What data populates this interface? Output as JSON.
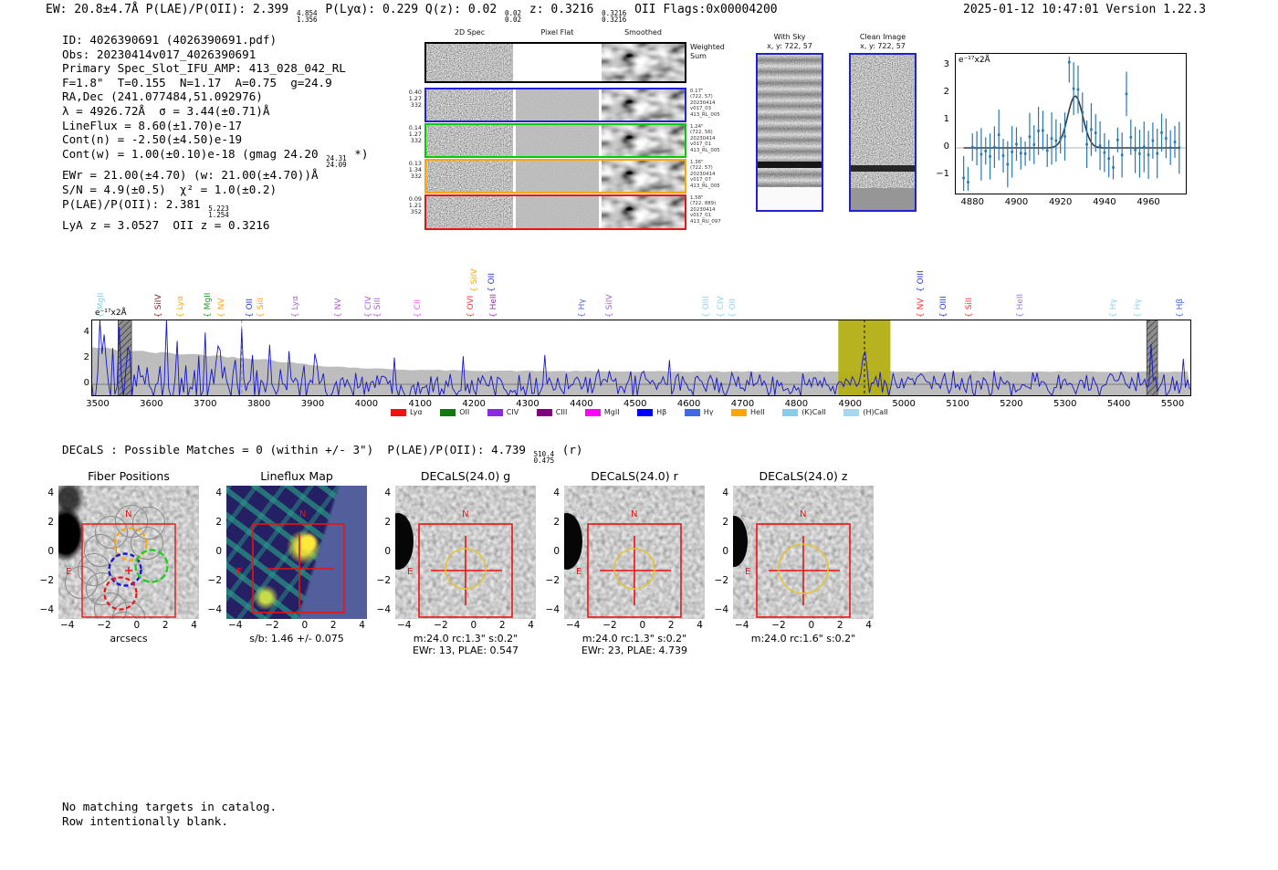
{
  "header": {
    "segments": [
      {
        "t": "EW: 20.8±4.7Å  P(LAE)/P(OII): 2.399 "
      },
      {
        "sup": "4.854",
        "sub": "1.356"
      },
      {
        "t": "  P(Lyα): 0.229  Q(z): 0.02 "
      },
      {
        "sup": "0.02",
        "sub": "0.02"
      },
      {
        "t": "  z: 0.3216 "
      },
      {
        "sup": "0.3216",
        "sub": "0.3216"
      },
      {
        "t": " OII   Flags:0x00004200"
      }
    ],
    "datetime": "2025-01-12 10:47:01",
    "version": "Version 1.22.3"
  },
  "info": {
    "lines": [
      [
        {
          "t": "ID: 4026390691 (4026390691.pdf)"
        }
      ],
      [
        {
          "t": "Obs: 20230414v017_4026390691"
        }
      ],
      [
        {
          "t": "Primary Spec_Slot_IFU_AMP: 413_028_042_RL"
        }
      ],
      [
        {
          "t": "F=1.8\"  T=0.155  N=1.17  A=0.75  g=24.9"
        }
      ],
      [
        {
          "t": "RA,Dec (241.077484,51.092976)"
        }
      ],
      [
        {
          "t": "λ = 4926.72Å  σ = 3.44(±0.71)Å"
        }
      ],
      [
        {
          "t": "LineFlux = 8.60(±1.70)e-17"
        }
      ],
      [
        {
          "t": "Cont(n) = -2.50(±4.50)e-19"
        }
      ],
      [
        {
          "t": "Cont(w) = 1.00(±0.10)e-18 (gmag 24.20 "
        },
        {
          "sup": "24.31",
          "sub": "24.09"
        },
        {
          "t": " *)"
        }
      ],
      [
        {
          "t": "EWr = 21.00(±4.70) (w: 21.00(±4.70))Å"
        }
      ],
      [
        {
          "t": "S/N = 4.9(±0.5)  χ² = 1.0(±0.2)"
        }
      ],
      [
        {
          "t": "P(LAE)/P(OII): 2.381 "
        },
        {
          "sup": "5.223",
          "sub": "1.254"
        }
      ],
      [
        {
          "t": "LyA z = 3.0527  OII z = 0.3216"
        }
      ]
    ]
  },
  "cutouts2d": {
    "col_headers": [
      "2D Spec",
      "Pixel Flat",
      "Smoothed"
    ],
    "rows": [
      {
        "border": "#000000",
        "left": [],
        "right": [
          "Weighted",
          "Sum"
        ]
      },
      {
        "border": "#2020dd",
        "left": [
          "0.40",
          "1.27",
          "332"
        ],
        "right": [
          "0.17\"",
          "(722, 57)",
          "20230414",
          "v017_03",
          "413_RL_005"
        ]
      },
      {
        "border": "#00cc00",
        "left": [
          "0.14",
          "1.27",
          "332"
        ],
        "right": [
          "1.24\"",
          "(722, 56)",
          "20230414",
          "v017_01",
          "413_RL_005"
        ]
      },
      {
        "border": "#ffa500",
        "left": [
          "0.13",
          "1.34",
          "332"
        ],
        "right": [
          "1.36\"",
          "(722, 57)",
          "20230414",
          "v017_07",
          "413_RL_005"
        ]
      },
      {
        "border": "#ee1111",
        "left": [
          "0.09",
          "1.21",
          "352"
        ],
        "right": [
          "1.58\"",
          "(722, 889)",
          "20230414",
          "v017_01",
          "413_RU_097"
        ]
      }
    ]
  },
  "sky": [
    {
      "title": "With Sky",
      "xy": "x, y: 722, 57"
    },
    {
      "title": "Clean Image",
      "xy": "x, y: 722, 57"
    }
  ],
  "decals": {
    "segments": [
      {
        "t": "DECaLS : Possible Matches = 0 (within +/- 3\")  P(LAE)/P(OII): 4.739 "
      },
      {
        "sup": "510.4",
        "sub": "0.475"
      },
      {
        "t": " (r)"
      }
    ]
  },
  "panels": [
    {
      "title": "Fiber Positions",
      "yticks": [
        "4",
        "2",
        "0",
        "−2",
        "−4"
      ],
      "xticks": [
        "−4",
        "−2",
        "0",
        "2",
        "4"
      ],
      "caption": "arcsecs",
      "caption2": "",
      "compass_n": "N",
      "compass_e": "E"
    },
    {
      "title": "Lineflux Map",
      "yticks": [
        "4",
        "2",
        "0",
        "−2",
        "−4"
      ],
      "xticks": [
        "−4",
        "−2",
        "0",
        "2",
        "4"
      ],
      "caption": "s/b: 1.46 +/- 0.075",
      "caption2": "",
      "compass_n": "N",
      "compass_e": "E"
    },
    {
      "title": "DECaLS(24.0) g",
      "yticks": [
        "4",
        "2",
        "0",
        "−2",
        "−4"
      ],
      "xticks": [
        "−4",
        "−2",
        "0",
        "2",
        "4"
      ],
      "caption": "m:24.0 rc:1.3\"  s:0.2\"",
      "caption2": "EWr: 13, PLAE: 0.547",
      "compass_n": "N",
      "compass_e": "E"
    },
    {
      "title": "DECaLS(24.0) r",
      "yticks": [
        "4",
        "2",
        "0",
        "−2",
        "−4"
      ],
      "xticks": [
        "−4",
        "−2",
        "0",
        "2",
        "4"
      ],
      "caption": "m:24.0 rc:1.3\"  s:0.2\"",
      "caption2": "EWr: 23, PLAE: 4.739",
      "compass_n": "N",
      "compass_e": "E"
    },
    {
      "title": "DECaLS(24.0) z",
      "yticks": [
        "4",
        "2",
        "0",
        "−2",
        "−4"
      ],
      "xticks": [
        "−4",
        "−2",
        "0",
        "2",
        "4"
      ],
      "caption": "m:24.0 rc:1.6\"  s:0.2\"",
      "caption2": "",
      "compass_n": "N",
      "compass_e": "E"
    }
  ],
  "footer": {
    "lines": [
      "No matching targets in catalog.",
      "Row intentionally blank."
    ]
  },
  "chart_data": [
    {
      "id": "line_fit_inset",
      "type": "scatter",
      "units_label": "e⁻¹⁷x2Å",
      "xlim": [
        4872,
        4977
      ],
      "xticks": [
        4880,
        4900,
        4920,
        4940,
        4960
      ],
      "ylim": [
        -1.7,
        3.47
      ],
      "yticks": [
        3,
        2,
        1,
        0,
        -1
      ],
      "gaussian_fit": {
        "center": 4926.72,
        "sigma": 3.44,
        "amplitude": 1.9,
        "baseline": 0.0
      },
      "notable_points": [
        [
          4876,
          -1.1
        ],
        [
          4878,
          -1.25
        ],
        [
          4924,
          3.13
        ],
        [
          4950,
          1.97
        ]
      ],
      "point_color": "#2676b4",
      "fit_color": "#3a3a3a"
    },
    {
      "id": "full_spectrum",
      "type": "line",
      "units_label": "e⁻¹⁷x2Å",
      "xlim": [
        3488,
        5535
      ],
      "ylim": [
        -0.95,
        5.1
      ],
      "xticks": [
        3500,
        3600,
        3700,
        3800,
        3900,
        4000,
        4100,
        4200,
        4300,
        4400,
        4500,
        4600,
        4700,
        4800,
        4900,
        5000,
        5100,
        5200,
        5300,
        5400,
        5500
      ],
      "yticks": [
        0,
        2,
        4
      ],
      "line_color": "#1414cd",
      "error_band_color": "#bdbdbd",
      "highlight_band": {
        "x0": 4878,
        "x1": 4975,
        "color": "#b3ae14"
      },
      "detection_line": {
        "x": 4926.72,
        "style": "dashed-black"
      },
      "reference_line": {
        "x": 3768,
        "style": "dashed-gray"
      },
      "hatched_regions": [
        [
          3538,
          3563
        ],
        [
          5452,
          5472
        ]
      ],
      "error_envelope": [
        [
          3488,
          2.9
        ],
        [
          3600,
          2.5
        ],
        [
          3700,
          2.3
        ],
        [
          3800,
          2.0
        ],
        [
          3900,
          1.5
        ],
        [
          4000,
          1.25
        ],
        [
          4100,
          1.12
        ],
        [
          4300,
          1.05
        ],
        [
          4500,
          1.0
        ],
        [
          5535,
          1.0
        ]
      ],
      "notable_peaks": [
        [
          3505,
          5.0
        ],
        [
          3513,
          3.9
        ],
        [
          3538,
          4.5
        ],
        [
          3556,
          2.9
        ],
        [
          3628,
          5.05
        ],
        [
          3648,
          3.4
        ],
        [
          3700,
          4.05
        ],
        [
          3725,
          3.0
        ],
        [
          3766,
          4.35
        ],
        [
          3820,
          3.1
        ],
        [
          3856,
          2.6
        ],
        [
          3905,
          2.4
        ],
        [
          4052,
          2.1
        ],
        [
          4178,
          2.2
        ],
        [
          4332,
          2.3
        ],
        [
          4562,
          1.9
        ],
        [
          5461,
          3.15
        ],
        [
          5521,
          2.0
        ]
      ],
      "legend": [
        {
          "label": "Lyα",
          "color": "#ee1111"
        },
        {
          "label": "OII",
          "color": "#0f7a0f"
        },
        {
          "label": "CIV",
          "color": "#8a2be2"
        },
        {
          "label": "CIII",
          "color": "#800080"
        },
        {
          "label": "MgII",
          "color": "#ff00ff"
        },
        {
          "label": "Hβ",
          "color": "#0000ff"
        },
        {
          "label": "Hγ",
          "color": "#4169e1"
        },
        {
          "label": "HeII",
          "color": "#ffa500"
        },
        {
          "label": "(K)CaII",
          "color": "#87ceeb"
        },
        {
          "label": "(H)CaII",
          "color": "#a5d8f0"
        }
      ],
      "line_markers": [
        {
          "label": "MgII",
          "x": 3505,
          "color": "#87ceeb",
          "row": 0
        },
        {
          "label": "SiIV",
          "x": 3612,
          "color": "#8b2020",
          "row": 0
        },
        {
          "label": "Lyα",
          "x": 3653,
          "color": "#ffa500",
          "row": 0
        },
        {
          "label": "MgII",
          "x": 3704,
          "color": "#229922",
          "row": 0
        },
        {
          "label": "NV",
          "x": 3729,
          "color": "#ffa500",
          "row": 0
        },
        {
          "label": "OII",
          "x": 3782,
          "color": "#2233dd",
          "row": 0
        },
        {
          "label": "SiII",
          "x": 3802,
          "color": "#ffa500",
          "row": 0
        },
        {
          "label": "Lyα",
          "x": 3867,
          "color": "#a85fd0",
          "row": 0
        },
        {
          "label": "NV",
          "x": 3947,
          "color": "#a85fd0",
          "row": 0
        },
        {
          "label": "CIV",
          "x": 4003,
          "color": "#a85fd0",
          "row": 0
        },
        {
          "label": "SiII",
          "x": 4020,
          "color": "#a85fd0",
          "row": 0
        },
        {
          "label": "CII",
          "x": 4094,
          "color": "#ee55ee",
          "row": 0
        },
        {
          "label": "OVI",
          "x": 4193,
          "color": "#ff3333",
          "row": 0
        },
        {
          "label": "SiIV",
          "x": 4199,
          "color": "#ffa500",
          "row": 1
        },
        {
          "label": "OII",
          "x": 4232,
          "color": "#2233dd",
          "row": 1
        },
        {
          "label": "HeII",
          "x": 4235,
          "color": "#993399",
          "row": 0
        },
        {
          "label": "Hγ",
          "x": 4401,
          "color": "#5566dd",
          "row": 0
        },
        {
          "label": "SiIV",
          "x": 4452,
          "color": "#a85fd0",
          "row": 0
        },
        {
          "label": "OIII",
          "x": 4631,
          "color": "#8fd0ee",
          "row": 0
        },
        {
          "label": "CIV",
          "x": 4659,
          "color": "#8fd0ee",
          "row": 0
        },
        {
          "label": "OII",
          "x": 4680,
          "color": "#8fd0ee",
          "row": 0
        },
        {
          "label": "NV",
          "x": 5030,
          "color": "#ff3333",
          "row": 0
        },
        {
          "label": "OIII",
          "x": 5030,
          "color": "#2233dd",
          "row": 1
        },
        {
          "label": "OIII",
          "x": 5072,
          "color": "#2233dd",
          "row": 0
        },
        {
          "label": "SiII",
          "x": 5121,
          "color": "#ff3333",
          "row": 0
        },
        {
          "label": "HeII",
          "x": 5216,
          "color": "#9977dd",
          "row": 0
        },
        {
          "label": "Hγ",
          "x": 5389,
          "color": "#8fd0ee",
          "row": 0
        },
        {
          "label": "Hγ",
          "x": 5435,
          "color": "#8fd0ee",
          "row": 0
        },
        {
          "label": "Hβ",
          "x": 5512,
          "color": "#4169e1",
          "row": 0
        }
      ]
    }
  ]
}
